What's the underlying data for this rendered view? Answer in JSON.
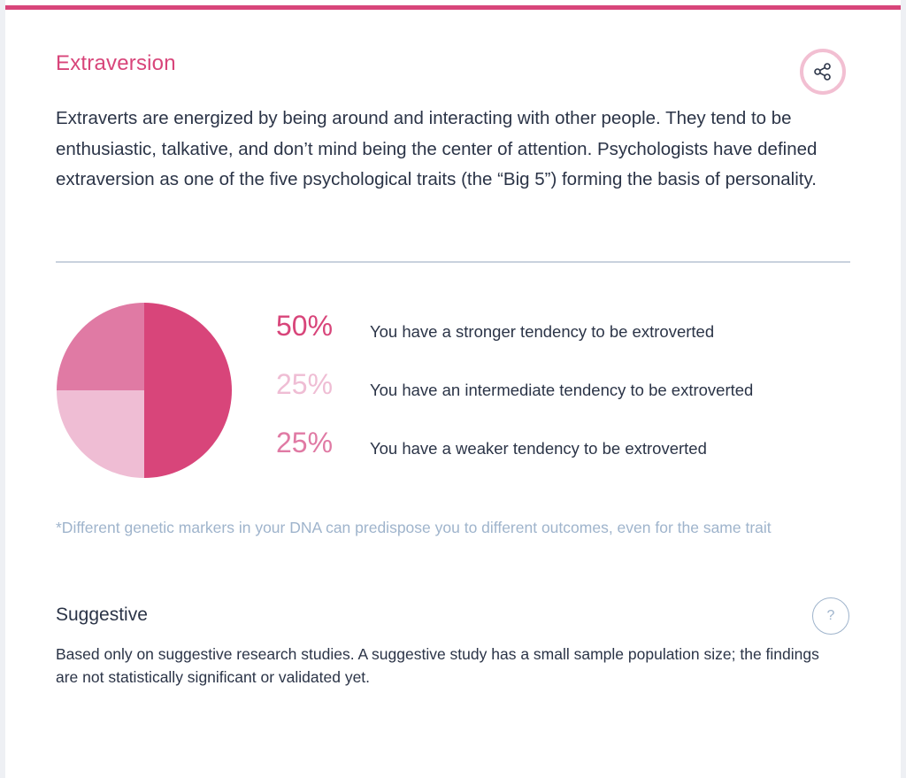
{
  "trait": {
    "title": "Extraversion",
    "description": "Extraverts are energized by being around and interacting with other people. They tend to be enthusiastic, talkative, and don’t mind being the center of attention. Psychologists have defined extraversion as one of the five psychological traits (the “Big 5”) forming the basis of personality."
  },
  "actions": {
    "share_icon": "share-icon",
    "help_icon": "question-icon",
    "help_label": "?"
  },
  "chart_data": {
    "type": "pie",
    "slices": [
      {
        "label": "You have a stronger tendency to be extroverted",
        "value": 50,
        "display": "50%",
        "color": "#d8457a"
      },
      {
        "label": "You have an intermediate tendency to be extroverted",
        "value": 25,
        "display": "25%",
        "color": "#efbdd4"
      },
      {
        "label": "You have a weaker tendency to be extroverted",
        "value": 25,
        "display": "25%",
        "color": "#e07aa4"
      }
    ]
  },
  "footnote": "*Different genetic markers in your DNA can predispose you to different outcomes, even for the same trait",
  "evidence": {
    "title": "Suggestive",
    "description": "Based only on suggestive research studies. A suggestive study has a small sample population size; the findings are not statistically significant or validated yet."
  },
  "colors": {
    "accent": "#d8457a",
    "text": "#2b3447",
    "muted": "#9fb4cc"
  }
}
